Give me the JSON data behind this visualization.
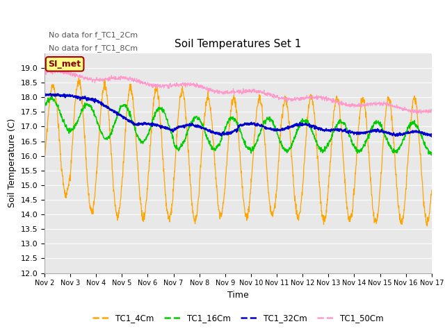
{
  "title": "Soil Temperatures Set 1",
  "xlabel": "Time",
  "ylabel": "Soil Temperature (C)",
  "ylim": [
    12.0,
    19.5
  ],
  "yticks": [
    12.0,
    12.5,
    13.0,
    13.5,
    14.0,
    14.5,
    15.0,
    15.5,
    16.0,
    16.5,
    17.0,
    17.5,
    18.0,
    18.5,
    19.0
  ],
  "colors": {
    "TC1_4Cm": "#FFA500",
    "TC1_16Cm": "#00CC00",
    "TC1_32Cm": "#0000CC",
    "TC1_50Cm": "#FF99CC"
  },
  "fig_bg_color": "#FFFFFF",
  "plot_bg_color": "#E8E8E8",
  "annotation_text1": "No data for f_TC1_2Cm",
  "annotation_text2": "No data for f_TC1_8Cm",
  "simet_label": "SI_met",
  "x_tick_labels": [
    "Nov 2",
    "Nov 3",
    "Nov 4",
    "Nov 5",
    "Nov 6",
    "Nov 7",
    "Nov 8",
    "Nov 9",
    "Nov 10",
    "Nov 11",
    "Nov 12",
    "Nov 13",
    "Nov 14",
    "Nov 15",
    "Nov 16",
    "Nov 17"
  ],
  "legend_labels": [
    "TC1_4Cm",
    "TC1_16Cm",
    "TC1_32Cm",
    "TC1_50Cm"
  ]
}
